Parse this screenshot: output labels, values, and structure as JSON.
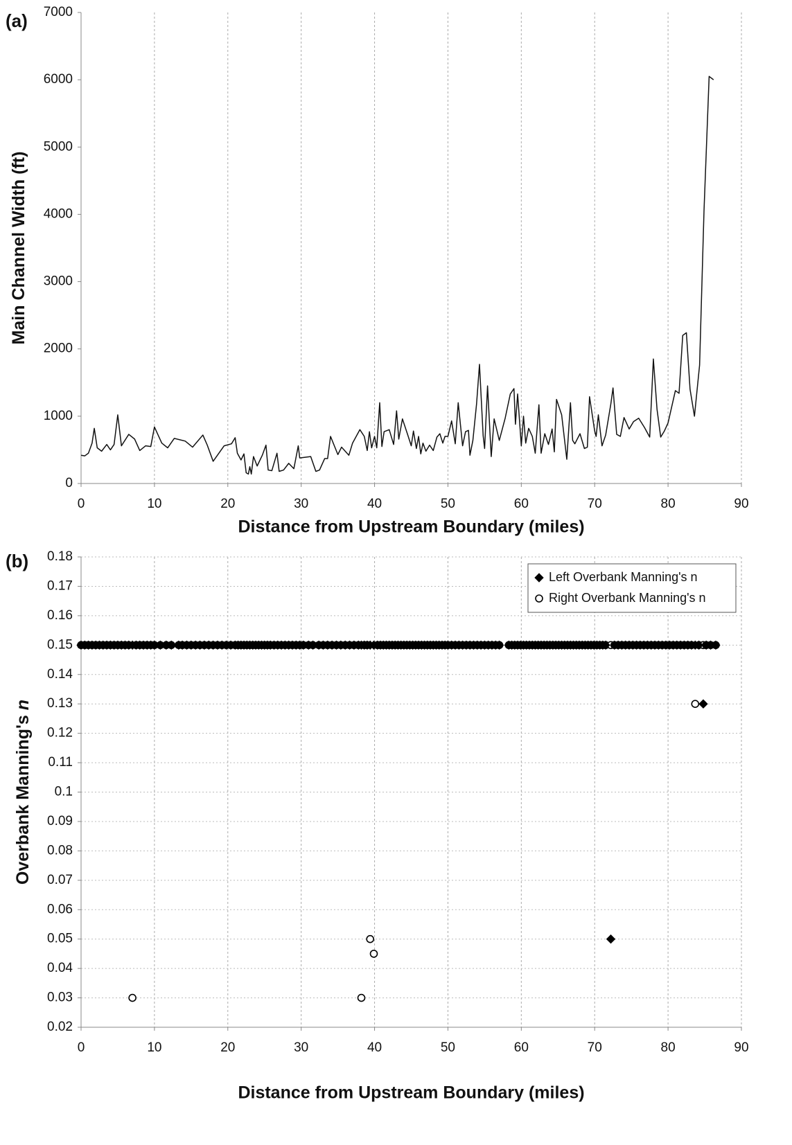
{
  "chart_data": [
    {
      "type": "line",
      "panel_label": "(a)",
      "x_label": "Distance from Upstream Boundary (miles)",
      "y_label": "Main Channel Width (ft)",
      "xlim": [
        0,
        90
      ],
      "xticks": [
        0,
        10,
        20,
        30,
        40,
        50,
        60,
        70,
        80,
        90
      ],
      "ylim": [
        0,
        7000
      ],
      "yticks": [
        0,
        1000,
        2000,
        3000,
        4000,
        5000,
        6000,
        7000
      ],
      "grid": "x",
      "color": "#111111",
      "x": [
        0,
        0.5,
        1,
        1.5,
        1.8,
        2.2,
        2.8,
        3.5,
        4,
        4.5,
        5,
        5.5,
        6.5,
        7.3,
        8,
        8.8,
        9.5,
        10,
        11,
        11.8,
        12.7,
        14.2,
        15.2,
        16.6,
        17.2,
        18,
        19.5,
        20.5,
        21,
        21.3,
        21.8,
        22.2,
        22.5,
        22.8,
        23,
        23.2,
        23.5,
        24,
        24.7,
        25.2,
        25.5,
        26,
        26.7,
        27,
        27.6,
        28.3,
        29,
        29.6,
        29.8,
        31.3,
        32,
        32.5,
        33.2,
        33.6,
        34,
        35,
        35.5,
        36.5,
        37,
        38,
        38.6,
        39,
        39.3,
        39.6,
        40,
        40.3,
        40.7,
        41,
        41.3,
        42,
        42.6,
        43,
        43.3,
        43.8,
        44.5,
        45,
        45.3,
        45.7,
        46,
        46.3,
        46.6,
        47,
        47.5,
        48,
        48.5,
        48.9,
        49.3,
        49.6,
        50,
        50.5,
        51,
        51.4,
        52,
        52.4,
        52.8,
        53,
        53.4,
        53.9,
        54.3,
        54.8,
        55,
        55.4,
        55.9,
        56.3,
        57,
        57.8,
        58.5,
        59,
        59.2,
        59.5,
        60,
        60.3,
        60.6,
        61,
        61.5,
        61.9,
        62.4,
        62.7,
        63.2,
        63.7,
        64.2,
        64.5,
        64.8,
        65.5,
        66.2,
        66.7,
        67,
        67.3,
        68,
        68.6,
        69,
        69.3,
        70,
        70.2,
        70.5,
        71,
        71.5,
        72.2,
        72.5,
        73,
        73.5,
        74,
        74.7,
        75.3,
        76,
        76.8,
        77.5,
        78,
        78.5,
        79,
        79.5,
        80,
        81,
        81.5,
        82,
        82.5,
        83,
        83.6,
        84.3,
        84.9,
        85.6,
        86.2
      ],
      "values": [
        420,
        410,
        450,
        600,
        820,
        530,
        480,
        580,
        500,
        580,
        1020,
        560,
        730,
        660,
        490,
        560,
        550,
        840,
        600,
        530,
        670,
        630,
        540,
        720,
        570,
        330,
        560,
        590,
        680,
        450,
        350,
        440,
        160,
        140,
        250,
        140,
        400,
        260,
        420,
        570,
        200,
        190,
        450,
        180,
        200,
        300,
        220,
        560,
        380,
        400,
        180,
        200,
        370,
        370,
        700,
        430,
        540,
        420,
        600,
        800,
        700,
        490,
        770,
        530,
        700,
        530,
        1200,
        550,
        770,
        800,
        580,
        1080,
        660,
        960,
        730,
        560,
        780,
        520,
        700,
        440,
        600,
        480,
        570,
        490,
        690,
        740,
        600,
        700,
        700,
        930,
        590,
        1200,
        560,
        770,
        790,
        420,
        640,
        1180,
        1770,
        710,
        520,
        1450,
        400,
        960,
        640,
        970,
        1330,
        1410,
        880,
        1330,
        560,
        1000,
        600,
        820,
        700,
        450,
        1170,
        450,
        740,
        580,
        810,
        470,
        1250,
        1020,
        360,
        1200,
        640,
        590,
        740,
        520,
        540,
        1290,
        780,
        700,
        1020,
        560,
        720,
        1180,
        1420,
        730,
        700,
        980,
        810,
        920,
        970,
        830,
        690,
        1850,
        1100,
        690,
        780,
        900,
        1380,
        1340,
        2200,
        2240,
        1400,
        1000,
        1760,
        4050,
        6050,
        6000
      ]
    },
    {
      "type": "scatter",
      "panel_label": "(b)",
      "x_label": "Distance from Upstream Boundary (miles)",
      "y_label": "Overbank Manning's ",
      "y_label_symbol": "n",
      "xlim": [
        0,
        90
      ],
      "xticks": [
        0,
        10,
        20,
        30,
        40,
        50,
        60,
        70,
        80,
        90
      ],
      "ylim": [
        0.02,
        0.18
      ],
      "yticks": [
        0.02,
        0.03,
        0.04,
        0.05,
        0.06,
        0.07,
        0.08,
        0.09,
        0.1,
        0.11,
        0.12,
        0.13,
        0.14,
        0.15,
        0.16,
        0.17,
        0.18
      ],
      "grid": "both",
      "legend": "upper right",
      "x": [
        0,
        0.5,
        1,
        1.5,
        2,
        2.5,
        3,
        3.5,
        4,
        4.5,
        5,
        5.5,
        6,
        6.5,
        7,
        7.5,
        8,
        8.5,
        9,
        9.5,
        10,
        10.8,
        11.6,
        12.3,
        13.3,
        13.8,
        14.4,
        15,
        15.6,
        16.2,
        16.8,
        17.4,
        18,
        18.6,
        19.2,
        19.8,
        20.4,
        21,
        21.4,
        21.8,
        22.2,
        22.6,
        23,
        23.4,
        23.8,
        24.2,
        24.6,
        25,
        25.4,
        25.8,
        26.3,
        26.8,
        27.3,
        27.8,
        28.3,
        28.8,
        29.3,
        29.8,
        30.3,
        31,
        31.6,
        32.4,
        33,
        33.6,
        34.2,
        34.8,
        35.4,
        36,
        36.6,
        37.2,
        37.8,
        38.2,
        38.6,
        39,
        39.4,
        39.9,
        40.4,
        40.8,
        41.2,
        41.6,
        42,
        42.4,
        42.8,
        43.2,
        43.6,
        44,
        44.4,
        44.8,
        45.2,
        45.6,
        46,
        46.4,
        46.8,
        47.2,
        47.6,
        48,
        48.4,
        48.8,
        49.2,
        49.6,
        50,
        50.5,
        51,
        51.5,
        52,
        52.5,
        53,
        53.5,
        54,
        54.5,
        55,
        55.5,
        56,
        56.5,
        57,
        58.3,
        58.7,
        59.1,
        59.5,
        59.9,
        60.3,
        60.7,
        61.1,
        61.5,
        61.9,
        62.3,
        62.7,
        63.1,
        63.5,
        63.9,
        64.3,
        64.7,
        65.1,
        65.5,
        65.9,
        66.3,
        66.7,
        67.1,
        67.5,
        67.9,
        68.3,
        68.7,
        69.1,
        69.5,
        69.9,
        70.3,
        70.7,
        71.1,
        71.5,
        72.2,
        72.7,
        73.2,
        73.7,
        74.2,
        74.7,
        75.2,
        75.7,
        76.2,
        76.7,
        77.2,
        77.7,
        78.2,
        78.7,
        79.2,
        79.7,
        80.2,
        80.7,
        81.2,
        81.7,
        82.2,
        82.7,
        83.2,
        83.7,
        84.2,
        84.8,
        85.2,
        85.8,
        86.5
      ],
      "series": [
        {
          "name": "Left Overbank Manning's n",
          "color": "#000000",
          "marker": "diamond",
          "filled": true,
          "values": [
            0.15,
            0.15,
            0.15,
            0.15,
            0.15,
            0.15,
            0.15,
            0.15,
            0.15,
            0.15,
            0.15,
            0.15,
            0.15,
            0.15,
            0.15,
            0.15,
            0.15,
            0.15,
            0.15,
            0.15,
            0.15,
            0.15,
            0.15,
            0.15,
            0.15,
            0.15,
            0.15,
            0.15,
            0.15,
            0.15,
            0.15,
            0.15,
            0.15,
            0.15,
            0.15,
            0.15,
            0.15,
            0.15,
            0.15,
            0.15,
            0.15,
            0.15,
            0.15,
            0.15,
            0.15,
            0.15,
            0.15,
            0.15,
            0.15,
            0.15,
            0.15,
            0.15,
            0.15,
            0.15,
            0.15,
            0.15,
            0.15,
            0.15,
            0.15,
            0.15,
            0.15,
            0.15,
            0.15,
            0.15,
            0.15,
            0.15,
            0.15,
            0.15,
            0.15,
            0.15,
            0.15,
            0.15,
            0.15,
            0.15,
            0.15,
            0.15,
            0.15,
            0.15,
            0.15,
            0.15,
            0.15,
            0.15,
            0.15,
            0.15,
            0.15,
            0.15,
            0.15,
            0.15,
            0.15,
            0.15,
            0.15,
            0.15,
            0.15,
            0.15,
            0.15,
            0.15,
            0.15,
            0.15,
            0.15,
            0.15,
            0.15,
            0.15,
            0.15,
            0.15,
            0.15,
            0.15,
            0.15,
            0.15,
            0.15,
            0.15,
            0.15,
            0.15,
            0.15,
            0.15,
            0.15,
            0.15,
            0.15,
            0.15,
            0.15,
            0.15,
            0.15,
            0.15,
            0.15,
            0.15,
            0.15,
            0.15,
            0.15,
            0.15,
            0.15,
            0.15,
            0.15,
            0.15,
            0.15,
            0.15,
            0.15,
            0.15,
            0.15,
            0.15,
            0.15,
            0.15,
            0.15,
            0.15,
            0.15,
            0.15,
            0.15,
            0.15,
            0.15,
            0.15,
            0.15,
            0.05,
            0.15,
            0.15,
            0.15,
            0.15,
            0.15,
            0.15,
            0.15,
            0.15,
            0.15,
            0.15,
            0.15,
            0.15,
            0.15,
            0.15,
            0.15,
            0.15,
            0.15,
            0.15,
            0.15,
            0.15,
            0.15,
            0.15,
            0.15,
            0.15,
            0.13,
            0.15,
            0.15,
            0.15
          ]
        },
        {
          "name": "Right Overbank Manning's n",
          "color": "#000000",
          "marker": "circle",
          "filled": false,
          "values": [
            0.15,
            0.15,
            0.15,
            0.15,
            0.15,
            0.15,
            0.15,
            0.15,
            0.15,
            0.15,
            0.15,
            0.15,
            0.15,
            0.15,
            0.03,
            0.15,
            0.15,
            0.15,
            0.15,
            0.15,
            0.15,
            0.15,
            0.15,
            0.15,
            0.15,
            0.15,
            0.15,
            0.15,
            0.15,
            0.15,
            0.15,
            0.15,
            0.15,
            0.15,
            0.15,
            0.15,
            0.15,
            0.15,
            0.15,
            0.15,
            0.15,
            0.15,
            0.15,
            0.15,
            0.15,
            0.15,
            0.15,
            0.15,
            0.15,
            0.15,
            0.15,
            0.15,
            0.15,
            0.15,
            0.15,
            0.15,
            0.15,
            0.15,
            0.15,
            0.15,
            0.15,
            0.15,
            0.15,
            0.15,
            0.15,
            0.15,
            0.15,
            0.15,
            0.15,
            0.15,
            0.15,
            0.03,
            0.15,
            0.15,
            0.05,
            0.045,
            0.15,
            0.15,
            0.15,
            0.15,
            0.15,
            0.15,
            0.15,
            0.15,
            0.15,
            0.15,
            0.15,
            0.15,
            0.15,
            0.15,
            0.15,
            0.15,
            0.15,
            0.15,
            0.15,
            0.15,
            0.15,
            0.15,
            0.15,
            0.15,
            0.15,
            0.15,
            0.15,
            0.15,
            0.15,
            0.15,
            0.15,
            0.15,
            0.15,
            0.15,
            0.15,
            0.15,
            0.15,
            0.15,
            0.15,
            0.15,
            0.15,
            0.15,
            0.15,
            0.15,
            0.15,
            0.15,
            0.15,
            0.15,
            0.15,
            0.15,
            0.15,
            0.15,
            0.15,
            0.15,
            0.15,
            0.15,
            0.15,
            0.15,
            0.15,
            0.15,
            0.15,
            0.15,
            0.15,
            0.15,
            0.15,
            0.15,
            0.15,
            0.15,
            0.15,
            0.15,
            0.15,
            0.15,
            0.15,
            0.15,
            0.15,
            0.15,
            0.15,
            0.15,
            0.15,
            0.15,
            0.15,
            0.15,
            0.15,
            0.15,
            0.15,
            0.15,
            0.15,
            0.15,
            0.15,
            0.15,
            0.15,
            0.15,
            0.15,
            0.15,
            0.15,
            0.15,
            0.13,
            0.15,
            0.15,
            0.15,
            0.15,
            0.15
          ]
        }
      ]
    }
  ]
}
